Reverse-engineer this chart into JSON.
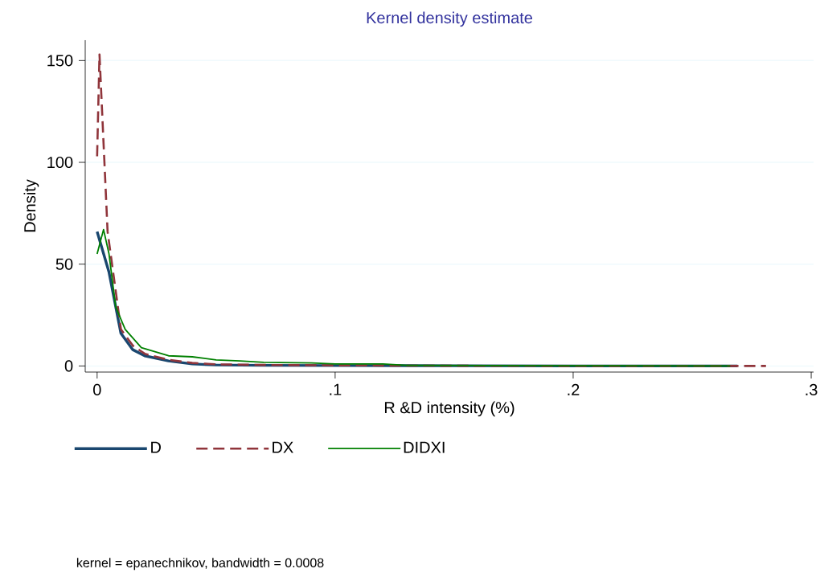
{
  "chart_data": {
    "type": "line",
    "title": "Kernel density estimate",
    "xlabel": "R &D intensity (%)",
    "ylabel": "Density",
    "xlim": [
      -0.005,
      0.301
    ],
    "ylim": [
      -3,
      160
    ],
    "xticks": [
      {
        "value": 0,
        "label": "0"
      },
      {
        "value": 0.1,
        "label": ".1"
      },
      {
        "value": 0.2,
        "label": ".2"
      },
      {
        "value": 0.3,
        "label": ".3"
      }
    ],
    "yticks": [
      0,
      50,
      100,
      150
    ],
    "grid": "y",
    "legend": "bottom",
    "marker": "none",
    "annotations": [
      "kernel = epanechnikov, bandwidth = 0.0008"
    ],
    "series": [
      {
        "name": "D",
        "color": "#1a476f",
        "line_style": "solid",
        "x": [
          0,
          0.005,
          0.01,
          0.015,
          0.02,
          0.03,
          0.04,
          0.05,
          0.07,
          0.1,
          0.15,
          0.2,
          0.269
        ],
        "values": [
          66,
          46,
          16,
          8,
          5,
          2.5,
          1,
          0.5,
          0.3,
          0.2,
          0.1,
          0,
          0
        ]
      },
      {
        "name": "DX",
        "color": "#90353b",
        "line_style": "dashed",
        "x": [
          0,
          0.001,
          0.0044,
          0.01,
          0.015,
          0.02,
          0.03,
          0.04,
          0.05,
          0.07,
          0.1,
          0.15,
          0.2,
          0.281
        ],
        "values": [
          103,
          153,
          66,
          18,
          10,
          6,
          3,
          1.5,
          0.8,
          0.5,
          0.3,
          0.1,
          0,
          0
        ]
      },
      {
        "name": "DIDXI",
        "color": "#008000",
        "line_style": "solid",
        "x": [
          0,
          0.0027,
          0.005,
          0.0078,
          0.0118,
          0.0186,
          0.03,
          0.04,
          0.05,
          0.06,
          0.07,
          0.09,
          0.1,
          0.12,
          0.13,
          0.2,
          0.266
        ],
        "values": [
          55,
          67,
          55,
          29,
          18,
          9,
          5,
          4.5,
          3,
          2.5,
          1.8,
          1.5,
          1,
          1,
          0.3,
          0.1,
          0
        ]
      }
    ]
  }
}
